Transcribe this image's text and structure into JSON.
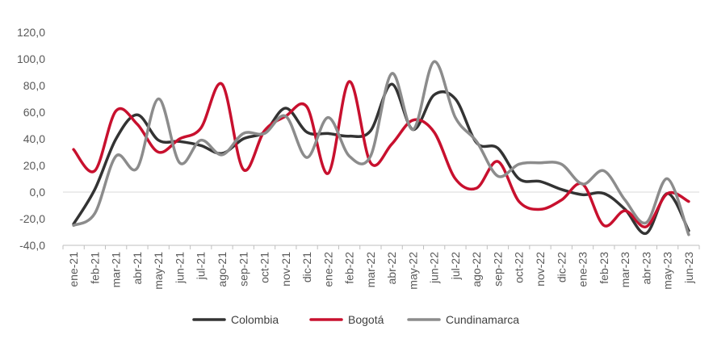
{
  "chart_data": {
    "type": "line",
    "categories": [
      "ene-21",
      "feb-21",
      "mar-21",
      "abr-21",
      "may-21",
      "jun-21",
      "jul-21",
      "ago-21",
      "sep-21",
      "oct-21",
      "nov-21",
      "dic-21",
      "ene-22",
      "feb-22",
      "mar-22",
      "abr-22",
      "may-22",
      "jun-22",
      "jul-22",
      "ago-22",
      "sep-22",
      "oct-22",
      "nov-22",
      "dic-22",
      "ene-23",
      "feb-23",
      "mar-23",
      "abr-23",
      "may-23",
      "jun-23"
    ],
    "ylim": [
      -40,
      120
    ],
    "yticks": [
      "-40,0",
      "-20,0",
      "0,0",
      "20,0",
      "40,0",
      "60,0",
      "80,0",
      "100,0",
      "120,0"
    ],
    "grid": "zero-line only",
    "legend_position": "bottom",
    "series": [
      {
        "name": "Colombia",
        "color": "#333333",
        "values": [
          -24,
          2,
          40,
          58,
          39,
          38,
          35,
          29,
          40,
          45,
          63,
          45,
          44,
          42,
          46,
          81,
          47,
          73,
          70,
          37,
          33,
          10,
          8,
          2,
          -2,
          -1,
          -13,
          -31,
          -1,
          -29
        ]
      },
      {
        "name": "Bogotá",
        "color": "#C8102E",
        "values": [
          32,
          16,
          61,
          51,
          30,
          40,
          48,
          81,
          17,
          46,
          57,
          64,
          14,
          83,
          22,
          36,
          54,
          45,
          10,
          3,
          23,
          -7,
          -13,
          -6,
          6,
          -25,
          -14,
          -26,
          -1,
          -7
        ]
      },
      {
        "name": "Cundinamarca",
        "color": "#8C8C8C",
        "values": [
          -25,
          -16,
          27,
          18,
          70,
          22,
          39,
          28,
          44,
          44,
          57,
          26,
          56,
          27,
          27,
          89,
          47,
          98,
          56,
          38,
          12,
          21,
          22,
          21,
          6,
          16,
          -6,
          -23,
          10,
          -32
        ]
      }
    ]
  }
}
